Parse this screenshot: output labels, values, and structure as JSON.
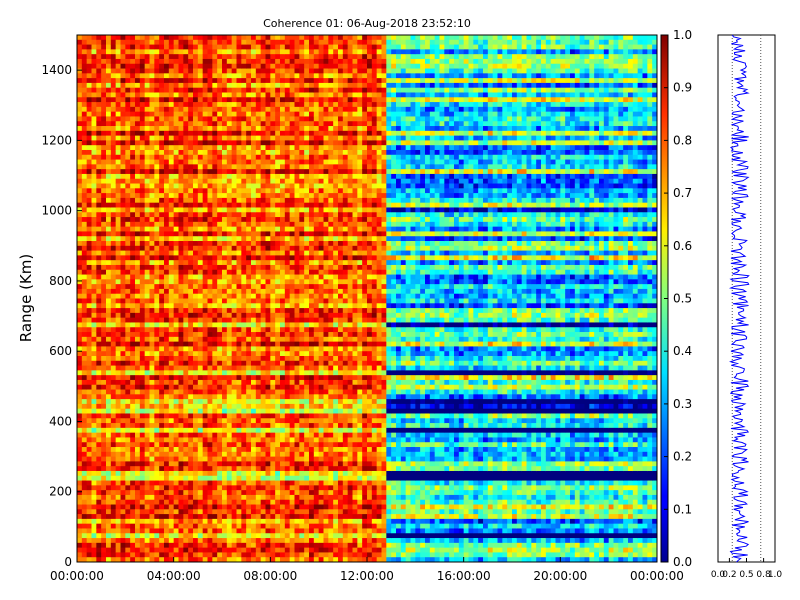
{
  "chart_data": [
    {
      "type": "heatmap",
      "title": "Coherence 01: 06-Aug-2018 23:52:10",
      "ylabel": "Range (Km)",
      "xlabel": "",
      "x_range": [
        "00:00:00",
        "24:00:00"
      ],
      "x_ticks": [
        "00:00:00",
        "04:00:00",
        "08:00:00",
        "12:00:00",
        "16:00:00",
        "20:00:00",
        "00:00:00"
      ],
      "ylim": [
        0,
        1500
      ],
      "y_ticks": [
        0,
        200,
        400,
        600,
        800,
        1000,
        1200,
        1400
      ],
      "colorscale": "jet",
      "colorbar": {
        "range": [
          0.0,
          1.0
        ],
        "ticks": [
          "0.0",
          "0.1",
          "0.2",
          "0.3",
          "0.4",
          "0.5",
          "0.6",
          "0.7",
          "0.8",
          "0.9",
          "1.0"
        ]
      },
      "regions": [
        {
          "time_range": [
            "00:00:00",
            "12:45:00"
          ],
          "coherence": 0.8,
          "pattern": "high coherence across most range gates"
        },
        {
          "time_range": [
            "12:45:00",
            "24:00:00"
          ],
          "coherence": 0.4,
          "pattern": "lower coherence with strong horizontal range banding"
        }
      ],
      "grid": false
    },
    {
      "type": "line",
      "title": "",
      "xlabel": "",
      "ylabel": "",
      "xlim": [
        0.0,
        1.0
      ],
      "x_ticks": [
        "0.0",
        "0.2",
        "0.5",
        "0.8",
        "1.0"
      ],
      "ylim": [
        0,
        1500
      ],
      "color": "#0000ff",
      "reference_lines": [
        0.25,
        0.75
      ],
      "profile_mean": 0.38
    }
  ]
}
